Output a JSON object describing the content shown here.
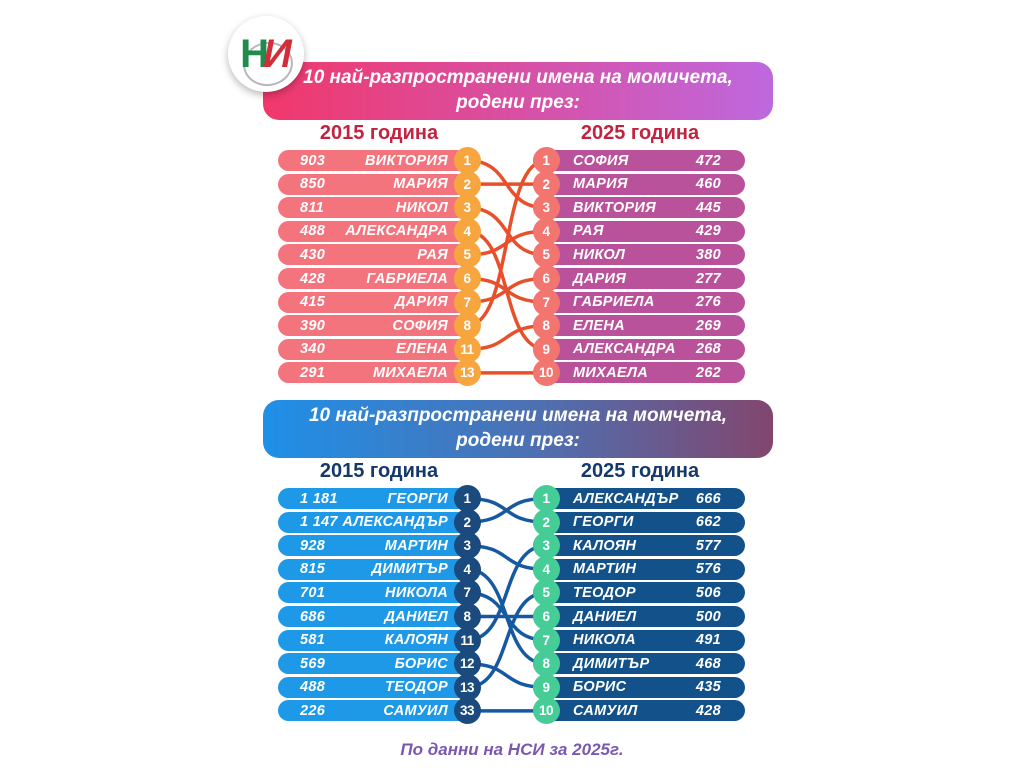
{
  "logo": {
    "letter_h": "Н",
    "letter_i": "И"
  },
  "footer": {
    "text": "По данни на НСИ за 2025г.",
    "color": "#7a58b0"
  },
  "chart_data": [
    {
      "id": "girls",
      "type": "table",
      "title_line1": "10 най-разпространени имена на момичета,",
      "title_line2": "родени през:",
      "left_header": "2015 година",
      "right_header": "2025 година",
      "left_rows": [
        {
          "count": "903",
          "name": "ВИКТОРИЯ",
          "badge": "1"
        },
        {
          "count": "850",
          "name": "МАРИЯ",
          "badge": "2"
        },
        {
          "count": "811",
          "name": "НИКОЛ",
          "badge": "3"
        },
        {
          "count": "488",
          "name": "АЛЕКСАНДРА",
          "badge": "4"
        },
        {
          "count": "430",
          "name": "РАЯ",
          "badge": "5"
        },
        {
          "count": "428",
          "name": "ГАБРИЕЛА",
          "badge": "6"
        },
        {
          "count": "415",
          "name": "ДАРИЯ",
          "badge": "7"
        },
        {
          "count": "390",
          "name": "СОФИЯ",
          "badge": "8"
        },
        {
          "count": "340",
          "name": "ЕЛЕНА",
          "badge": "11"
        },
        {
          "count": "291",
          "name": "МИХАЕЛА",
          "badge": "13"
        }
      ],
      "right_rows": [
        {
          "badge": "1",
          "name": "СОФИЯ",
          "count": "472"
        },
        {
          "badge": "2",
          "name": "МАРИЯ",
          "count": "460"
        },
        {
          "badge": "3",
          "name": "ВИКТОРИЯ",
          "count": "445"
        },
        {
          "badge": "4",
          "name": "РАЯ",
          "count": "429"
        },
        {
          "badge": "5",
          "name": "НИКОЛ",
          "count": "380"
        },
        {
          "badge": "6",
          "name": "ДАРИЯ",
          "count": "277"
        },
        {
          "badge": "7",
          "name": "ГАБРИЕЛА",
          "count": "276"
        },
        {
          "badge": "8",
          "name": "ЕЛЕНА",
          "count": "269"
        },
        {
          "badge": "9",
          "name": "АЛЕКСАНДРА",
          "count": "268"
        },
        {
          "badge": "10",
          "name": "МИХАЕЛА",
          "count": "262"
        }
      ],
      "links": [
        [
          0,
          2
        ],
        [
          1,
          1
        ],
        [
          2,
          4
        ],
        [
          3,
          8
        ],
        [
          4,
          3
        ],
        [
          5,
          6
        ],
        [
          6,
          5
        ],
        [
          7,
          0
        ],
        [
          8,
          7
        ],
        [
          9,
          9
        ]
      ],
      "colors": {
        "banner_from": "#f1386b",
        "banner_to": "#be68de",
        "header_text": "#c32240",
        "left_pill": "#f4747e",
        "right_pill": "#ba519b",
        "left_badge": "#f7a63f",
        "right_badge": "#f3756f",
        "line": "#e7502b"
      }
    },
    {
      "id": "boys",
      "type": "table",
      "title_line1": "10 най-разпространени имена на момчета,",
      "title_line2": "родени през:",
      "left_header": "2015 година",
      "right_header": "2025 година",
      "left_rows": [
        {
          "count": "1 181",
          "name": "ГЕОРГИ",
          "badge": "1"
        },
        {
          "count": "1 147",
          "name": "АЛЕКСАНДЪР",
          "badge": "2"
        },
        {
          "count": "928",
          "name": "МАРТИН",
          "badge": "3"
        },
        {
          "count": "815",
          "name": "ДИМИТЪР",
          "badge": "4"
        },
        {
          "count": "701",
          "name": "НИКОЛА",
          "badge": "7"
        },
        {
          "count": "686",
          "name": "ДАНИЕЛ",
          "badge": "8"
        },
        {
          "count": "581",
          "name": "КАЛОЯН",
          "badge": "11"
        },
        {
          "count": "569",
          "name": "БОРИС",
          "badge": "12"
        },
        {
          "count": "488",
          "name": "ТЕОДОР",
          "badge": "13"
        },
        {
          "count": "226",
          "name": "САМУИЛ",
          "badge": "33"
        }
      ],
      "right_rows": [
        {
          "badge": "1",
          "name": "АЛЕКСАНДЪР",
          "count": "666"
        },
        {
          "badge": "2",
          "name": "ГЕОРГИ",
          "count": "662"
        },
        {
          "badge": "3",
          "name": "КАЛОЯН",
          "count": "577"
        },
        {
          "badge": "4",
          "name": "МАРТИН",
          "count": "576"
        },
        {
          "badge": "5",
          "name": "ТЕОДОР",
          "count": "506"
        },
        {
          "badge": "6",
          "name": "ДАНИЕЛ",
          "count": "500"
        },
        {
          "badge": "7",
          "name": "НИКОЛА",
          "count": "491"
        },
        {
          "badge": "8",
          "name": "ДИМИТЪР",
          "count": "468"
        },
        {
          "badge": "9",
          "name": "БОРИС",
          "count": "435"
        },
        {
          "badge": "10",
          "name": "САМУИЛ",
          "count": "428"
        }
      ],
      "links": [
        [
          0,
          1
        ],
        [
          1,
          0
        ],
        [
          2,
          3
        ],
        [
          3,
          7
        ],
        [
          4,
          6
        ],
        [
          5,
          5
        ],
        [
          6,
          2
        ],
        [
          7,
          8
        ],
        [
          8,
          4
        ],
        [
          9,
          9
        ]
      ],
      "colors": {
        "banner_from": "#1f90e8",
        "banner_mid": "#4f6fb0",
        "banner_to": "#82466e",
        "header_text": "#16396b",
        "left_pill": "#1d99e8",
        "right_pill": "#125189",
        "left_badge": "#1a4a7e",
        "right_badge": "#46cd97",
        "line": "#1659a0"
      }
    }
  ]
}
